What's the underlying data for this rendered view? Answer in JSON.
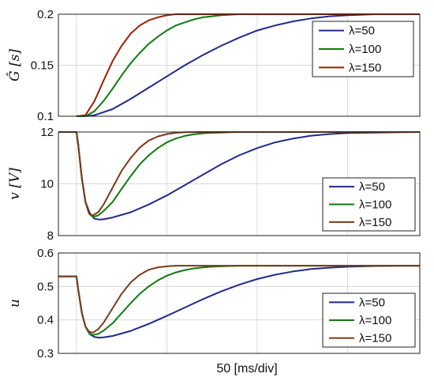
{
  "figure": {
    "xlabel": "50 [ms/div]"
  },
  "colors": {
    "blue": "#1f2a8c",
    "green": "#0f7a10",
    "red": "#a21e00",
    "brown": "#7a3a18",
    "grid": "#d9d9d9"
  },
  "chart_data": [
    {
      "type": "line",
      "ylabel": "Ĝ [s]",
      "ylim": [
        0.1,
        0.2
      ],
      "yticks": [
        "0.1",
        "0.15",
        "0.2"
      ],
      "ytick_values": [
        0.1,
        0.15,
        0.2
      ],
      "xlim": [
        -20,
        380
      ],
      "x_gridlines": [
        0,
        100,
        200,
        300
      ],
      "grid": true,
      "legend_position": "top-right",
      "series": [
        {
          "name": "λ=50",
          "color": "blue",
          "x": [
            0,
            10,
            20,
            40,
            60,
            80,
            100,
            120,
            140,
            160,
            180,
            200,
            220,
            240,
            260,
            280,
            300,
            330,
            360,
            380
          ],
          "y": [
            0.1,
            0.1,
            0.101,
            0.107,
            0.117,
            0.128,
            0.139,
            0.15,
            0.16,
            0.169,
            0.177,
            0.184,
            0.189,
            0.193,
            0.196,
            0.198,
            0.199,
            0.2,
            0.2,
            0.2
          ]
        },
        {
          "name": "λ=100",
          "color": "green",
          "x": [
            0,
            10,
            20,
            30,
            40,
            50,
            60,
            70,
            80,
            90,
            100,
            110,
            120,
            130,
            140,
            150,
            160,
            180,
            200,
            250,
            380
          ],
          "y": [
            0.1,
            0.1,
            0.105,
            0.115,
            0.127,
            0.14,
            0.152,
            0.162,
            0.171,
            0.178,
            0.184,
            0.189,
            0.192,
            0.195,
            0.197,
            0.198,
            0.199,
            0.2,
            0.2,
            0.2,
            0.2
          ]
        },
        {
          "name": "λ=150",
          "color": "red",
          "x": [
            0,
            10,
            20,
            30,
            40,
            50,
            60,
            70,
            80,
            90,
            100,
            110,
            120,
            140,
            380
          ],
          "y": [
            0.1,
            0.101,
            0.115,
            0.135,
            0.154,
            0.169,
            0.181,
            0.189,
            0.194,
            0.197,
            0.199,
            0.2,
            0.2,
            0.2,
            0.2
          ]
        }
      ]
    },
    {
      "type": "line",
      "ylabel": "v [V]",
      "ylim": [
        8,
        12
      ],
      "yticks": [
        "8",
        "10",
        "12"
      ],
      "ytick_values": [
        8,
        10,
        12
      ],
      "xlim": [
        -20,
        380
      ],
      "x_gridlines": [
        0,
        100,
        200,
        300
      ],
      "grid": true,
      "legend_position": "bottom-right",
      "series": [
        {
          "name": "λ=50",
          "color": "blue",
          "x": [
            -20,
            0,
            2,
            6,
            10,
            15,
            20,
            25,
            30,
            40,
            60,
            80,
            100,
            120,
            140,
            160,
            180,
            200,
            220,
            240,
            260,
            280,
            300,
            330,
            360,
            380
          ],
          "y": [
            12,
            12,
            11.5,
            10.2,
            9.3,
            8.85,
            8.65,
            8.62,
            8.63,
            8.7,
            8.9,
            9.2,
            9.55,
            9.95,
            10.35,
            10.75,
            11.1,
            11.38,
            11.6,
            11.75,
            11.86,
            11.92,
            11.96,
            11.98,
            11.99,
            12
          ]
        },
        {
          "name": "λ=100",
          "color": "green",
          "x": [
            -20,
            0,
            2,
            6,
            10,
            14,
            18,
            24,
            30,
            40,
            50,
            60,
            70,
            80,
            90,
            100,
            110,
            120,
            130,
            140,
            150,
            160,
            170,
            180,
            200,
            230,
            380
          ],
          "y": [
            12,
            12,
            11.5,
            10.2,
            9.3,
            8.85,
            8.72,
            8.78,
            8.95,
            9.3,
            9.8,
            10.3,
            10.75,
            11.1,
            11.38,
            11.6,
            11.75,
            11.85,
            11.91,
            11.95,
            11.97,
            11.98,
            11.99,
            12,
            12,
            12,
            12
          ]
        },
        {
          "name": "λ=150",
          "color": "brown",
          "x": [
            -20,
            0,
            2,
            6,
            10,
            14,
            18,
            24,
            30,
            40,
            50,
            60,
            70,
            80,
            90,
            100,
            110,
            120,
            140,
            380
          ],
          "y": [
            12,
            12,
            11.5,
            10.2,
            9.3,
            8.85,
            8.78,
            8.9,
            9.2,
            9.85,
            10.5,
            11.0,
            11.4,
            11.67,
            11.83,
            11.92,
            11.97,
            11.99,
            12,
            12
          ]
        }
      ]
    },
    {
      "type": "line",
      "ylabel": "u",
      "ylim": [
        0.3,
        0.6
      ],
      "yticks": [
        "0.3",
        "0.4",
        "0.5",
        "0.6"
      ],
      "ytick_values": [
        0.3,
        0.4,
        0.5,
        0.6
      ],
      "xlim": [
        -20,
        380
      ],
      "x_gridlines": [
        0,
        100,
        200,
        300
      ],
      "grid": true,
      "legend_position": "bottom-right",
      "series": [
        {
          "name": "λ=50",
          "color": "blue",
          "x": [
            -20,
            0,
            2,
            6,
            10,
            15,
            20,
            25,
            30,
            40,
            60,
            80,
            100,
            120,
            140,
            160,
            180,
            200,
            220,
            240,
            260,
            280,
            300,
            330,
            360,
            380
          ],
          "y": [
            0.53,
            0.53,
            0.49,
            0.42,
            0.38,
            0.357,
            0.349,
            0.347,
            0.348,
            0.352,
            0.367,
            0.388,
            0.412,
            0.437,
            0.462,
            0.485,
            0.505,
            0.522,
            0.535,
            0.545,
            0.552,
            0.556,
            0.559,
            0.561,
            0.562,
            0.562
          ]
        },
        {
          "name": "λ=100",
          "color": "green",
          "x": [
            -20,
            0,
            2,
            6,
            10,
            14,
            18,
            24,
            30,
            40,
            50,
            60,
            70,
            80,
            90,
            100,
            110,
            120,
            130,
            140,
            150,
            160,
            180,
            200,
            380
          ],
          "y": [
            0.53,
            0.53,
            0.49,
            0.42,
            0.38,
            0.36,
            0.355,
            0.358,
            0.368,
            0.39,
            0.42,
            0.45,
            0.478,
            0.5,
            0.518,
            0.532,
            0.542,
            0.549,
            0.554,
            0.557,
            0.559,
            0.56,
            0.562,
            0.562,
            0.562
          ]
        },
        {
          "name": "λ=150",
          "color": "brown",
          "x": [
            -20,
            0,
            2,
            6,
            10,
            14,
            18,
            24,
            30,
            40,
            50,
            60,
            70,
            80,
            90,
            100,
            110,
            120,
            140,
            380
          ],
          "y": [
            0.53,
            0.53,
            0.49,
            0.42,
            0.38,
            0.365,
            0.362,
            0.372,
            0.392,
            0.435,
            0.478,
            0.512,
            0.535,
            0.55,
            0.557,
            0.56,
            0.562,
            0.562,
            0.562,
            0.562
          ]
        }
      ]
    }
  ]
}
